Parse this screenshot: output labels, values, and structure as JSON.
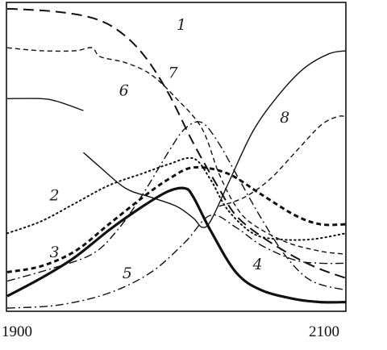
{
  "chart_data": {
    "type": "line",
    "x_axis": {
      "min": 1900,
      "max": 2100,
      "ticks": [
        {
          "value": 1900,
          "label": "1900"
        },
        {
          "value": 2100,
          "label": "2100"
        }
      ]
    },
    "y_axis": {
      "min": 0,
      "max": 100,
      "ticks": []
    },
    "grid": false,
    "series": [
      {
        "label": "1",
        "style": "long-dash",
        "weight": 2,
        "label_at": [
          2000,
          93
        ],
        "points": [
          [
            1900,
            100
          ],
          [
            1910,
            99.8
          ],
          [
            1930,
            99
          ],
          [
            1950,
            97
          ],
          [
            1965,
            93
          ],
          [
            1980,
            85
          ],
          [
            1995,
            72
          ],
          [
            2010,
            55
          ],
          [
            2025,
            40
          ],
          [
            2035,
            31
          ],
          [
            2050,
            24
          ],
          [
            2070,
            17
          ],
          [
            2085,
            13
          ],
          [
            2100,
            10
          ]
        ]
      },
      {
        "label": "2",
        "style": "dotted",
        "weight": 2,
        "label_at": [
          1925,
          36
        ],
        "points": [
          [
            1900,
            25
          ],
          [
            1920,
            29
          ],
          [
            1940,
            35
          ],
          [
            1960,
            41
          ],
          [
            1980,
            45
          ],
          [
            1995,
            48
          ],
          [
            2010,
            50
          ],
          [
            2020,
            43
          ],
          [
            2030,
            33
          ],
          [
            2045,
            25
          ],
          [
            2060,
            23
          ],
          [
            2080,
            23
          ],
          [
            2100,
            25
          ]
        ]
      },
      {
        "label": "3",
        "style": "dash",
        "weight": 3,
        "label_at": [
          1925,
          17
        ],
        "points": [
          [
            1900,
            12
          ],
          [
            1920,
            14
          ],
          [
            1940,
            19
          ],
          [
            1960,
            28
          ],
          [
            1980,
            37
          ],
          [
            1995,
            43
          ],
          [
            2010,
            47
          ],
          [
            2030,
            45
          ],
          [
            2050,
            38
          ],
          [
            2070,
            31
          ],
          [
            2085,
            28
          ],
          [
            2100,
            28
          ]
        ]
      },
      {
        "label": "4",
        "style": "solid",
        "weight": 3.2,
        "label_at": [
          2045,
          13
        ],
        "points": [
          [
            1900,
            4
          ],
          [
            1920,
            10
          ],
          [
            1940,
            17
          ],
          [
            1960,
            26
          ],
          [
            1980,
            34
          ],
          [
            1995,
            39
          ],
          [
            2005,
            40
          ],
          [
            2010,
            37
          ],
          [
            2020,
            26
          ],
          [
            2035,
            12
          ],
          [
            2050,
            6
          ],
          [
            2070,
            3
          ],
          [
            2085,
            2
          ],
          [
            2100,
            2
          ]
        ]
      },
      {
        "label": "5",
        "style": "dash-dot",
        "weight": 1.4,
        "label_at": [
          1968,
          10
        ],
        "points": [
          [
            1900,
            0
          ],
          [
            1930,
            1
          ],
          [
            1960,
            5
          ],
          [
            1985,
            12
          ],
          [
            2005,
            22
          ],
          [
            2020,
            31
          ],
          [
            2035,
            27
          ],
          [
            2050,
            21
          ],
          [
            2070,
            16
          ],
          [
            2085,
            15
          ],
          [
            2100,
            15
          ]
        ]
      },
      {
        "label": "6",
        "style": "solid",
        "weight": 1.4,
        "label_at": [
          1966,
          71
        ],
        "points": [
          [
            1900,
            70
          ],
          [
            1920,
            70
          ],
          [
            1930,
            69
          ],
          [
            1945,
            66
          ]
        ]
      },
      {
        "label": "7",
        "style": "dash",
        "weight": 1.4,
        "label_at": [
          1995,
          77
        ],
        "points": [
          [
            1900,
            87
          ],
          [
            1920,
            86
          ],
          [
            1940,
            86
          ],
          [
            1950,
            87
          ],
          [
            1955,
            84
          ],
          [
            1970,
            82
          ],
          [
            1985,
            78
          ],
          [
            2000,
            70
          ],
          [
            2015,
            60
          ],
          [
            2025,
            45
          ],
          [
            2035,
            34
          ],
          [
            2045,
            28
          ],
          [
            2065,
            22
          ],
          [
            2085,
            19
          ],
          [
            2100,
            18
          ]
        ]
      },
      {
        "label": "8",
        "style": "dash-dot",
        "weight": 1.4,
        "label_at": [
          2061,
          62
        ],
        "points": [
          [
            1900,
            9
          ],
          [
            1925,
            13
          ],
          [
            1950,
            18
          ],
          [
            1965,
            26
          ],
          [
            1980,
            38
          ],
          [
            1995,
            52
          ],
          [
            2005,
            60
          ],
          [
            2015,
            62
          ],
          [
            2025,
            55
          ],
          [
            2035,
            45
          ],
          [
            2050,
            30
          ],
          [
            2065,
            17
          ],
          [
            2080,
            9
          ],
          [
            2100,
            6
          ]
        ]
      },
      {
        "label": "",
        "style": "solid",
        "weight": 1.4,
        "points": [
          [
            1945,
            52
          ],
          [
            1955,
            47
          ],
          [
            1970,
            40
          ],
          [
            1985,
            37
          ],
          [
            2000,
            34
          ],
          [
            2010,
            30
          ],
          [
            2015,
            27
          ],
          [
            2020,
            29
          ],
          [
            2030,
            41
          ],
          [
            2045,
            59
          ],
          [
            2060,
            71
          ],
          [
            2075,
            80
          ],
          [
            2090,
            85
          ],
          [
            2100,
            86
          ]
        ]
      },
      {
        "label": "",
        "style": "dash",
        "weight": 1.4,
        "points": [
          [
            2025,
            34
          ],
          [
            2040,
            37
          ],
          [
            2055,
            43
          ],
          [
            2070,
            52
          ],
          [
            2085,
            61
          ],
          [
            2095,
            64
          ],
          [
            2100,
            64
          ]
        ]
      }
    ]
  }
}
